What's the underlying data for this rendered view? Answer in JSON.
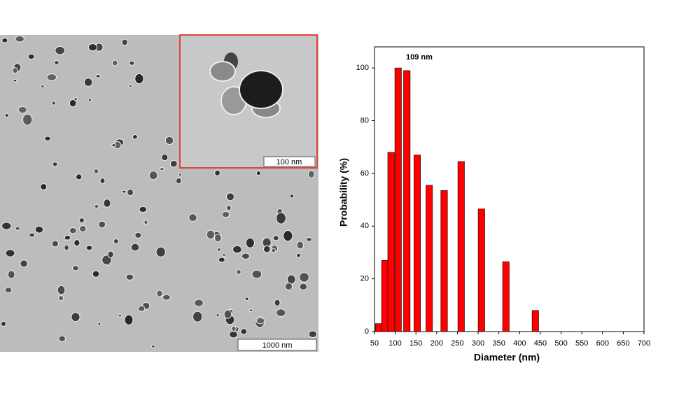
{
  "micrograph": {
    "scale_bar": "1000 nm",
    "inset_scale_bar": "100 nm"
  },
  "chart_data": {
    "type": "bar",
    "x_label": "Diameter (nm)",
    "y_label": "Probability (%)",
    "annotation": "109 nm",
    "x": [
      60,
      75,
      90,
      107,
      128,
      153,
      182,
      218,
      259,
      308,
      367,
      438
    ],
    "values": [
      3,
      27,
      68,
      100,
      99,
      67,
      55.5,
      53.5,
      64.5,
      46.5,
      26.5,
      8
    ],
    "color": "#ff0000",
    "xlim": [
      50,
      700
    ],
    "xticks": [
      50,
      100,
      150,
      200,
      250,
      300,
      350,
      400,
      450,
      500,
      550,
      600,
      650,
      700
    ],
    "ylim": [
      0,
      108
    ],
    "yticks": [
      0,
      20,
      40,
      60,
      80,
      100
    ]
  }
}
